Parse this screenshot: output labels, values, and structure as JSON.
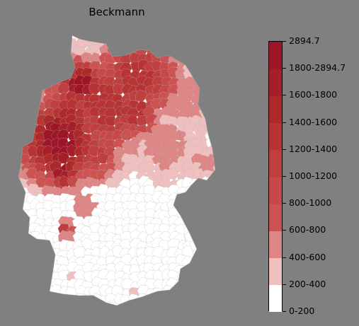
{
  "title": "Beckmann",
  "legend": {
    "labels": [
      "0-200",
      "200-400",
      "400-600",
      "600-800",
      "800-1000",
      "1000-1200",
      "1200-1400",
      "1400-1600",
      "1600-1800",
      "1800-2894.7",
      "2894.7"
    ],
    "colors": [
      "#ffffff",
      "#f0c0c0",
      "#de8585",
      "#cd5252",
      "#c64848",
      "#bf3e3e",
      "#b83434",
      "#ae2a2a",
      "#a51e28",
      "#9d1526"
    ],
    "bounds": [
      0,
      200,
      400,
      600,
      800,
      1000,
      1200,
      1400,
      1600,
      1800,
      2894.7
    ]
  },
  "colors": {
    "background": "#808080",
    "region_border": "#b5b5b5"
  }
}
